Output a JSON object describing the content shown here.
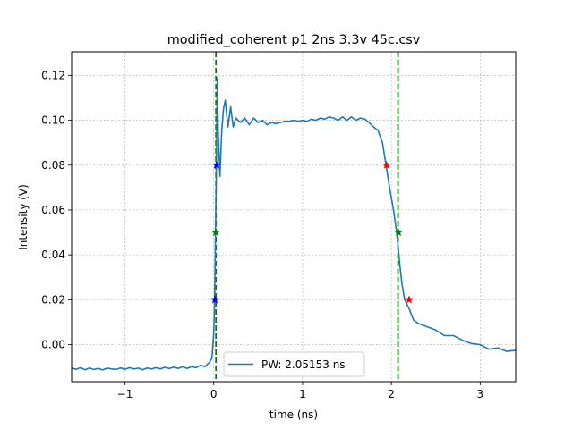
{
  "chart_data": {
    "type": "line",
    "title": "modified_coherent p1 2ns 3.3v 45c.csv",
    "xlabel": "time (ns)",
    "ylabel": "Intensity (V)",
    "xlim": [
      -1.6,
      3.4
    ],
    "ylim": [
      -0.0165,
      0.1305
    ],
    "x_ticks": [
      -1,
      0,
      1,
      2,
      3
    ],
    "x_tick_labels": [
      "−1",
      "0",
      "1",
      "2",
      "3"
    ],
    "y_ticks": [
      0.0,
      0.02,
      0.04,
      0.06,
      0.08,
      0.1,
      0.12
    ],
    "y_tick_labels": [
      "0.00",
      "0.02",
      "0.04",
      "0.06",
      "0.08",
      "0.10",
      "0.12"
    ],
    "grid": true,
    "legend_position": "bottom-center",
    "series": [
      {
        "name": "PW: 2.05153 ns",
        "color": "#1f77b4",
        "x": [
          -1.6,
          -1.55,
          -1.5,
          -1.45,
          -1.4,
          -1.35,
          -1.3,
          -1.25,
          -1.2,
          -1.15,
          -1.1,
          -1.05,
          -1.0,
          -0.95,
          -0.9,
          -0.85,
          -0.8,
          -0.75,
          -0.7,
          -0.65,
          -0.6,
          -0.55,
          -0.5,
          -0.45,
          -0.4,
          -0.35,
          -0.3,
          -0.25,
          -0.2,
          -0.15,
          -0.1,
          -0.05,
          -0.02,
          0.0,
          0.01,
          0.02,
          0.03,
          0.04,
          0.05,
          0.07,
          0.09,
          0.11,
          0.13,
          0.16,
          0.19,
          0.22,
          0.25,
          0.3,
          0.35,
          0.4,
          0.45,
          0.5,
          0.55,
          0.6,
          0.65,
          0.7,
          0.75,
          0.8,
          0.85,
          0.9,
          0.95,
          1.0,
          1.05,
          1.1,
          1.15,
          1.2,
          1.25,
          1.3,
          1.35,
          1.4,
          1.45,
          1.5,
          1.55,
          1.6,
          1.65,
          1.7,
          1.75,
          1.8,
          1.85,
          1.9,
          1.94,
          1.98,
          2.02,
          2.06,
          2.08,
          2.1,
          2.12,
          2.15,
          2.2,
          2.25,
          2.3,
          2.4,
          2.5,
          2.6,
          2.7,
          2.8,
          2.9,
          3.0,
          3.1,
          3.2,
          3.3,
          3.4
        ],
        "y": [
          -0.0105,
          -0.011,
          -0.0103,
          -0.0112,
          -0.0104,
          -0.0111,
          -0.0106,
          -0.0113,
          -0.0105,
          -0.0108,
          -0.0111,
          -0.0104,
          -0.011,
          -0.0103,
          -0.0109,
          -0.0105,
          -0.0112,
          -0.0104,
          -0.0109,
          -0.0103,
          -0.0108,
          -0.0101,
          -0.0107,
          -0.01,
          -0.0106,
          -0.0099,
          -0.0106,
          -0.0098,
          -0.0103,
          -0.0092,
          -0.0098,
          -0.008,
          -0.006,
          0.005,
          0.02,
          0.05,
          0.08,
          0.119,
          0.095,
          0.075,
          0.095,
          0.105,
          0.109,
          0.097,
          0.106,
          0.097,
          0.101,
          0.099,
          0.101,
          0.098,
          0.101,
          0.099,
          0.1,
          0.098,
          0.099,
          0.0985,
          0.099,
          0.0995,
          0.0995,
          0.1,
          0.0995,
          0.1,
          0.0995,
          0.1005,
          0.1,
          0.101,
          0.1005,
          0.1015,
          0.101,
          0.1,
          0.1015,
          0.1,
          0.1015,
          0.1,
          0.101,
          0.1005,
          0.099,
          0.097,
          0.0955,
          0.09,
          0.08,
          0.07,
          0.061,
          0.05,
          0.042,
          0.034,
          0.027,
          0.02,
          0.016,
          0.011,
          0.0095,
          0.008,
          0.0065,
          0.004,
          0.004,
          0.002,
          0.0005,
          0.0,
          -0.002,
          -0.0015,
          -0.003,
          -0.0025
        ]
      }
    ],
    "vlines": [
      {
        "x": 0.025,
        "color": "#008000",
        "style": "dashed"
      },
      {
        "x": 2.075,
        "color": "#008000",
        "style": "dashed"
      }
    ],
    "markers": [
      {
        "x": 0.013,
        "y": 0.02,
        "color": "#0000ff",
        "shape": "star"
      },
      {
        "x": 0.032,
        "y": 0.08,
        "color": "#0000ff",
        "shape": "star"
      },
      {
        "x": 0.022,
        "y": 0.05,
        "color": "#008000",
        "shape": "star"
      },
      {
        "x": 2.08,
        "y": 0.05,
        "color": "#008000",
        "shape": "star"
      },
      {
        "x": 1.945,
        "y": 0.08,
        "color": "#ff0000",
        "shape": "star"
      },
      {
        "x": 2.2,
        "y": 0.02,
        "color": "#ff0000",
        "shape": "star"
      }
    ]
  }
}
